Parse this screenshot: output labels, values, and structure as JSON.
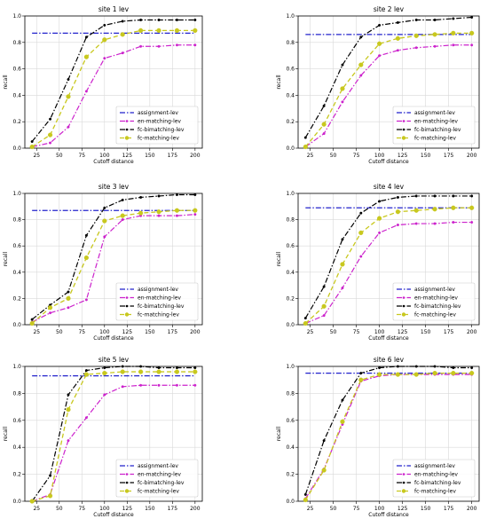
{
  "chart_data": [
    {
      "type": "line",
      "title": "site 1 lev",
      "xlabel": "Cutoff distance",
      "ylabel": "recall",
      "xlim": [
        12,
        208
      ],
      "ylim": [
        0.0,
        1.0
      ],
      "xticks": [
        25,
        50,
        75,
        100,
        125,
        150,
        175,
        200
      ],
      "yticks": [
        0.0,
        0.2,
        0.4,
        0.6,
        0.8,
        1.0
      ],
      "grid": true,
      "legend_position": "lower-right",
      "x": [
        20,
        40,
        60,
        80,
        100,
        120,
        140,
        160,
        180,
        200
      ],
      "series": [
        {
          "name": "assignment-lev",
          "color": "#2222cc",
          "style": "dashdot",
          "marker": "none",
          "values": [
            0.87,
            0.87,
            0.87,
            0.87,
            0.87,
            0.87,
            0.87,
            0.87,
            0.87,
            0.87
          ]
        },
        {
          "name": "en-matching-lev",
          "color": "#cc22cc",
          "style": "dashdot",
          "marker": "dot",
          "values": [
            0.01,
            0.04,
            0.16,
            0.43,
            0.68,
            0.72,
            0.77,
            0.77,
            0.78,
            0.78
          ]
        },
        {
          "name": "fc-bimatching-lev",
          "color": "#000000",
          "style": "dashdot",
          "marker": "dot",
          "values": [
            0.05,
            0.22,
            0.52,
            0.84,
            0.93,
            0.96,
            0.97,
            0.97,
            0.97,
            0.97
          ]
        },
        {
          "name": "fc-matching-lev",
          "color": "#c8c81e",
          "style": "dashed",
          "marker": "circle",
          "values": [
            0.01,
            0.1,
            0.39,
            0.69,
            0.82,
            0.86,
            0.89,
            0.89,
            0.89,
            0.89
          ]
        }
      ]
    },
    {
      "type": "line",
      "title": "site 2 lev",
      "xlabel": "Cutoff distance",
      "ylabel": "recall",
      "xlim": [
        12,
        208
      ],
      "ylim": [
        0.0,
        1.0
      ],
      "xticks": [
        25,
        50,
        75,
        100,
        125,
        150,
        175,
        200
      ],
      "yticks": [
        0.0,
        0.2,
        0.4,
        0.6,
        0.8,
        1.0
      ],
      "grid": true,
      "legend_position": "lower-right",
      "x": [
        20,
        40,
        60,
        80,
        100,
        120,
        140,
        160,
        180,
        200
      ],
      "series": [
        {
          "name": "assignment-lev",
          "color": "#2222cc",
          "style": "dashdot",
          "marker": "none",
          "values": [
            0.86,
            0.86,
            0.86,
            0.86,
            0.86,
            0.86,
            0.86,
            0.86,
            0.86,
            0.86
          ]
        },
        {
          "name": "en-matching-lev",
          "color": "#cc22cc",
          "style": "dashdot",
          "marker": "dot",
          "values": [
            0.01,
            0.11,
            0.35,
            0.55,
            0.7,
            0.74,
            0.76,
            0.77,
            0.78,
            0.78
          ]
        },
        {
          "name": "fc-bimatching-lev",
          "color": "#000000",
          "style": "dashdot",
          "marker": "dot",
          "values": [
            0.08,
            0.32,
            0.63,
            0.84,
            0.93,
            0.95,
            0.97,
            0.97,
            0.98,
            0.99
          ]
        },
        {
          "name": "fc-matching-lev",
          "color": "#c8c81e",
          "style": "dashed",
          "marker": "circle",
          "values": [
            0.01,
            0.18,
            0.45,
            0.63,
            0.79,
            0.83,
            0.85,
            0.86,
            0.87,
            0.87
          ]
        }
      ]
    },
    {
      "type": "line",
      "title": "site 3 lev",
      "xlabel": "Cutoff distance",
      "ylabel": "recall",
      "xlim": [
        12,
        208
      ],
      "ylim": [
        0.0,
        1.0
      ],
      "xticks": [
        25,
        50,
        75,
        100,
        125,
        150,
        175,
        200
      ],
      "yticks": [
        0.0,
        0.2,
        0.4,
        0.6,
        0.8,
        1.0
      ],
      "grid": true,
      "legend_position": "lower-right",
      "x": [
        20,
        40,
        60,
        80,
        100,
        120,
        140,
        160,
        180,
        200
      ],
      "series": [
        {
          "name": "assignment-lev",
          "color": "#2222cc",
          "style": "dashdot",
          "marker": "none",
          "values": [
            0.87,
            0.87,
            0.87,
            0.87,
            0.87,
            0.87,
            0.87,
            0.87,
            0.87,
            0.87
          ]
        },
        {
          "name": "en-matching-lev",
          "color": "#cc22cc",
          "style": "dashdot",
          "marker": "dot",
          "values": [
            0.02,
            0.09,
            0.13,
            0.19,
            0.67,
            0.8,
            0.83,
            0.83,
            0.83,
            0.84
          ]
        },
        {
          "name": "fc-bimatching-lev",
          "color": "#000000",
          "style": "dashdot",
          "marker": "dot",
          "values": [
            0.04,
            0.15,
            0.25,
            0.68,
            0.89,
            0.95,
            0.97,
            0.98,
            0.99,
            0.99
          ]
        },
        {
          "name": "fc-matching-lev",
          "color": "#c8c81e",
          "style": "dashed",
          "marker": "circle",
          "values": [
            0.01,
            0.13,
            0.2,
            0.51,
            0.79,
            0.83,
            0.85,
            0.86,
            0.87,
            0.87
          ]
        }
      ]
    },
    {
      "type": "line",
      "title": "site 4 lev",
      "xlabel": "Cutoff distance",
      "ylabel": "recall",
      "xlim": [
        12,
        208
      ],
      "ylim": [
        0.0,
        1.0
      ],
      "xticks": [
        25,
        50,
        75,
        100,
        125,
        150,
        175,
        200
      ],
      "yticks": [
        0.0,
        0.2,
        0.4,
        0.6,
        0.8,
        1.0
      ],
      "grid": true,
      "legend_position": "lower-right",
      "x": [
        20,
        40,
        60,
        80,
        100,
        120,
        140,
        160,
        180,
        200
      ],
      "series": [
        {
          "name": "assignment-lev",
          "color": "#2222cc",
          "style": "dashdot",
          "marker": "none",
          "values": [
            0.89,
            0.89,
            0.89,
            0.89,
            0.89,
            0.89,
            0.89,
            0.89,
            0.89,
            0.89
          ]
        },
        {
          "name": "en-matching-lev",
          "color": "#cc22cc",
          "style": "dashdot",
          "marker": "dot",
          "values": [
            0.01,
            0.07,
            0.28,
            0.52,
            0.7,
            0.76,
            0.77,
            0.77,
            0.78,
            0.78
          ]
        },
        {
          "name": "fc-bimatching-lev",
          "color": "#000000",
          "style": "dashdot",
          "marker": "dot",
          "values": [
            0.05,
            0.29,
            0.65,
            0.85,
            0.94,
            0.97,
            0.98,
            0.98,
            0.98,
            0.98
          ]
        },
        {
          "name": "fc-matching-lev",
          "color": "#c8c81e",
          "style": "dashed",
          "marker": "circle",
          "values": [
            0.01,
            0.14,
            0.46,
            0.7,
            0.81,
            0.86,
            0.87,
            0.88,
            0.89,
            0.89
          ]
        }
      ]
    },
    {
      "type": "line",
      "title": "site 5 lev",
      "xlabel": "Cutoff distance",
      "ylabel": "recall",
      "xlim": [
        12,
        208
      ],
      "ylim": [
        0.0,
        1.0
      ],
      "xticks": [
        25,
        50,
        75,
        100,
        125,
        150,
        175,
        200
      ],
      "yticks": [
        0.0,
        0.2,
        0.4,
        0.6,
        0.8,
        1.0
      ],
      "grid": true,
      "legend_position": "lower-right",
      "x": [
        20,
        40,
        60,
        80,
        100,
        120,
        140,
        160,
        180,
        200
      ],
      "series": [
        {
          "name": "assignment-lev",
          "color": "#2222cc",
          "style": "dashdot",
          "marker": "none",
          "values": [
            0.93,
            0.93,
            0.93,
            0.93,
            0.93,
            0.93,
            0.93,
            0.93,
            0.93,
            0.93
          ]
        },
        {
          "name": "en-matching-lev",
          "color": "#cc22cc",
          "style": "dashdot",
          "marker": "dot",
          "values": [
            0.0,
            0.05,
            0.45,
            0.62,
            0.79,
            0.85,
            0.86,
            0.86,
            0.86,
            0.86
          ]
        },
        {
          "name": "fc-bimatching-lev",
          "color": "#000000",
          "style": "dashdot",
          "marker": "dot",
          "values": [
            0.0,
            0.19,
            0.79,
            0.97,
            0.99,
            1.0,
            1.0,
            0.99,
            0.99,
            0.99
          ]
        },
        {
          "name": "fc-matching-lev",
          "color": "#c8c81e",
          "style": "dashed",
          "marker": "circle",
          "values": [
            0.0,
            0.04,
            0.68,
            0.94,
            0.95,
            0.96,
            0.96,
            0.96,
            0.96,
            0.96
          ]
        }
      ]
    },
    {
      "type": "line",
      "title": "site 6 lev",
      "xlabel": "Cutoff distance",
      "ylabel": "recall",
      "xlim": [
        12,
        208
      ],
      "ylim": [
        0.0,
        1.0
      ],
      "xticks": [
        25,
        50,
        75,
        100,
        125,
        150,
        175,
        200
      ],
      "yticks": [
        0.0,
        0.2,
        0.4,
        0.6,
        0.8,
        1.0
      ],
      "grid": true,
      "legend_position": "lower-right",
      "x": [
        20,
        40,
        60,
        80,
        100,
        120,
        140,
        160,
        180,
        200
      ],
      "series": [
        {
          "name": "assignment-lev",
          "color": "#2222cc",
          "style": "dashdot",
          "marker": "none",
          "values": [
            0.95,
            0.95,
            0.95,
            0.95,
            0.95,
            0.95,
            0.95,
            0.95,
            0.95,
            0.95
          ]
        },
        {
          "name": "en-matching-lev",
          "color": "#cc22cc",
          "style": "dashdot",
          "marker": "dot",
          "values": [
            0.02,
            0.24,
            0.57,
            0.89,
            0.93,
            0.94,
            0.94,
            0.94,
            0.94,
            0.94
          ]
        },
        {
          "name": "fc-bimatching-lev",
          "color": "#000000",
          "style": "dashdot",
          "marker": "dot",
          "values": [
            0.05,
            0.45,
            0.75,
            0.95,
            0.99,
            1.0,
            1.0,
            1.0,
            0.99,
            0.99
          ]
        },
        {
          "name": "fc-matching-lev",
          "color": "#c8c81e",
          "style": "dashed",
          "marker": "circle",
          "values": [
            0.01,
            0.23,
            0.59,
            0.9,
            0.94,
            0.94,
            0.94,
            0.95,
            0.95,
            0.95
          ]
        }
      ]
    }
  ]
}
